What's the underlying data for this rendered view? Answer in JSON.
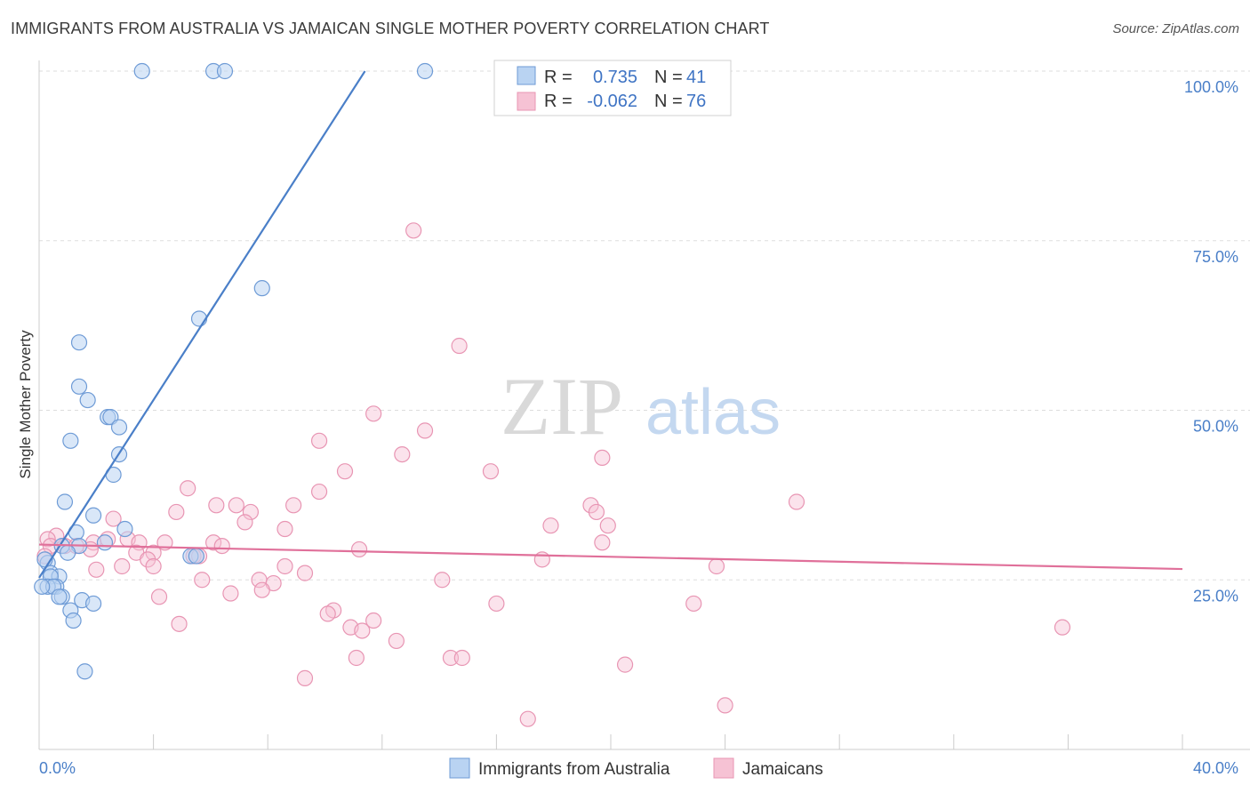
{
  "title": "IMMIGRANTS FROM AUSTRALIA VS JAMAICAN SINGLE MOTHER POVERTY CORRELATION CHART",
  "source": "Source: ZipAtlas.com",
  "watermark": {
    "zip": "ZIP",
    "atlas": "atlas"
  },
  "colors": {
    "blue": "#4a7fc8",
    "blue_fill": "#b9d3f2",
    "pink": "#e0709a",
    "pink_fill": "#f6c2d4",
    "grid": "#dddddd"
  },
  "legend": {
    "r_label": "R =",
    "n_label": "N =",
    "rows": [
      {
        "r": "0.735",
        "n": "41"
      },
      {
        "r": "-0.062",
        "n": "76"
      }
    ]
  },
  "chart_data": {
    "type": "scatter",
    "title": "IMMIGRANTS FROM AUSTRALIA VS JAMAICAN SINGLE MOTHER POVERTY CORRELATION CHART",
    "xlabel": "",
    "ylabel": "Single Mother Poverty",
    "xlim": [
      0,
      40
    ],
    "ylim": [
      0,
      100
    ],
    "x_tick_labels": [
      "0.0%",
      "40.0%"
    ],
    "y_ticks": [
      25,
      50,
      75,
      100
    ],
    "y_tick_labels": [
      "25.0%",
      "50.0%",
      "75.0%",
      "100.0%"
    ],
    "grid": true,
    "legend_position": "top-center",
    "series": [
      {
        "name": "Immigrants from Australia",
        "color": "#4a7fc8",
        "trend": {
          "x": [
            0.0,
            11.4
          ],
          "y": [
            25.3,
            100
          ]
        },
        "points": [
          [
            3.6,
            100
          ],
          [
            6.1,
            100
          ],
          [
            6.5,
            100
          ],
          [
            13.5,
            100
          ],
          [
            7.8,
            68
          ],
          [
            5.6,
            63.5
          ],
          [
            1.4,
            60
          ],
          [
            1.4,
            53.5
          ],
          [
            1.7,
            51.5
          ],
          [
            2.4,
            49
          ],
          [
            2.5,
            49
          ],
          [
            2.8,
            47.5
          ],
          [
            1.1,
            45.5
          ],
          [
            2.8,
            43.5
          ],
          [
            2.6,
            40.5
          ],
          [
            0.9,
            36.5
          ],
          [
            1.9,
            34.5
          ],
          [
            3.0,
            32.5
          ],
          [
            1.3,
            32
          ],
          [
            2.3,
            30.5
          ],
          [
            0.8,
            30
          ],
          [
            1.4,
            30
          ],
          [
            1.0,
            29
          ],
          [
            5.3,
            28.5
          ],
          [
            5.5,
            28.5
          ],
          [
            0.3,
            27.5
          ],
          [
            0.2,
            28
          ],
          [
            0.4,
            26
          ],
          [
            0.7,
            25.5
          ],
          [
            0.4,
            25.5
          ],
          [
            0.6,
            24
          ],
          [
            0.3,
            24
          ],
          [
            0.5,
            24
          ],
          [
            0.8,
            22.5
          ],
          [
            1.5,
            22
          ],
          [
            0.7,
            22.5
          ],
          [
            1.9,
            21.5
          ],
          [
            1.1,
            20.5
          ],
          [
            1.2,
            19
          ],
          [
            1.6,
            11.5
          ],
          [
            0.1,
            24
          ]
        ]
      },
      {
        "name": "Jamaicans",
        "color": "#e0709a",
        "trend": {
          "x": [
            0.0,
            40.0
          ],
          "y": [
            30.2,
            26.6
          ]
        },
        "points": [
          [
            13.1,
            76.5
          ],
          [
            14.7,
            59.5
          ],
          [
            11.7,
            49.5
          ],
          [
            13.5,
            47
          ],
          [
            9.8,
            45.5
          ],
          [
            12.7,
            43.5
          ],
          [
            19.7,
            43
          ],
          [
            10.7,
            41
          ],
          [
            15.8,
            41
          ],
          [
            5.2,
            38.5
          ],
          [
            9.8,
            38
          ],
          [
            26.5,
            36.5
          ],
          [
            6.2,
            36
          ],
          [
            6.9,
            36
          ],
          [
            8.9,
            36
          ],
          [
            19.3,
            36
          ],
          [
            19.5,
            35
          ],
          [
            4.8,
            35
          ],
          [
            7.4,
            35
          ],
          [
            2.6,
            34
          ],
          [
            7.2,
            33.5
          ],
          [
            17.9,
            33
          ],
          [
            19.9,
            33
          ],
          [
            8.6,
            32.5
          ],
          [
            0.6,
            31.5
          ],
          [
            3.1,
            31
          ],
          [
            0.3,
            31
          ],
          [
            3.5,
            30.5
          ],
          [
            2.4,
            31
          ],
          [
            4.4,
            30.5
          ],
          [
            6.1,
            30.5
          ],
          [
            1.9,
            30.5
          ],
          [
            0.4,
            30
          ],
          [
            0.9,
            30
          ],
          [
            1.3,
            30
          ],
          [
            1.8,
            29.5
          ],
          [
            6.4,
            30
          ],
          [
            11.2,
            29.5
          ],
          [
            19.7,
            30.5
          ],
          [
            3.4,
            29
          ],
          [
            4.0,
            29
          ],
          [
            5.4,
            28.5
          ],
          [
            5.6,
            28.5
          ],
          [
            3.8,
            28
          ],
          [
            17.6,
            28
          ],
          [
            0.2,
            28.5
          ],
          [
            2.9,
            27
          ],
          [
            4.0,
            27
          ],
          [
            8.6,
            27
          ],
          [
            23.7,
            27
          ],
          [
            2.0,
            26.5
          ],
          [
            9.3,
            26
          ],
          [
            5.7,
            25
          ],
          [
            7.7,
            25
          ],
          [
            8.2,
            24.5
          ],
          [
            14.1,
            25
          ],
          [
            7.8,
            23.5
          ],
          [
            6.7,
            23
          ],
          [
            4.2,
            22.5
          ],
          [
            16.0,
            21.5
          ],
          [
            22.9,
            21.5
          ],
          [
            10.3,
            20.5
          ],
          [
            10.1,
            20
          ],
          [
            11.7,
            19
          ],
          [
            10.9,
            18
          ],
          [
            11.3,
            17.5
          ],
          [
            4.9,
            18.5
          ],
          [
            35.8,
            18
          ],
          [
            12.5,
            16
          ],
          [
            11.1,
            13.5
          ],
          [
            14.4,
            13.5
          ],
          [
            14.8,
            13.5
          ],
          [
            20.5,
            12.5
          ],
          [
            9.3,
            10.5
          ],
          [
            24.0,
            6.5
          ],
          [
            17.1,
            4.5
          ]
        ]
      }
    ]
  }
}
